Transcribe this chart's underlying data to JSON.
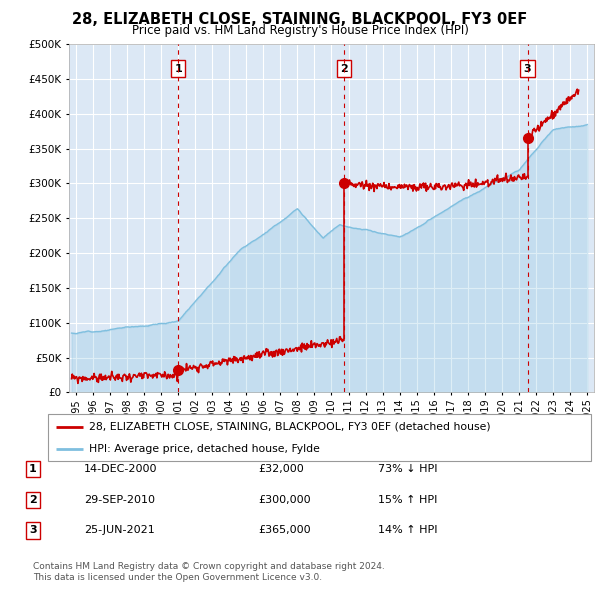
{
  "title": "28, ELIZABETH CLOSE, STAINING, BLACKPOOL, FY3 0EF",
  "subtitle": "Price paid vs. HM Land Registry's House Price Index (HPI)",
  "legend_line1": "28, ELIZABETH CLOSE, STAINING, BLACKPOOL, FY3 0EF (detached house)",
  "legend_line2": "HPI: Average price, detached house, Fylde",
  "footer1": "Contains HM Land Registry data © Crown copyright and database right 2024.",
  "footer2": "This data is licensed under the Open Government Licence v3.0.",
  "table_rows": [
    {
      "num": "1",
      "date": "14-DEC-2000",
      "price": "£32,000",
      "change": "73% ↓ HPI"
    },
    {
      "num": "2",
      "date": "29-SEP-2010",
      "price": "£300,000",
      "change": "15% ↑ HPI"
    },
    {
      "num": "3",
      "date": "25-JUN-2021",
      "price": "£365,000",
      "change": "14% ↑ HPI"
    }
  ],
  "sale_dates": [
    2001.0,
    2010.75,
    2021.5
  ],
  "sale_prices": [
    32000,
    300000,
    365000
  ],
  "sale_labels": [
    "1",
    "2",
    "3"
  ],
  "hpi_color": "#7fbfdf",
  "sale_color": "#cc0000",
  "vline_color": "#cc0000",
  "bg_color": "#dce8f5",
  "grid_color": "#ffffff",
  "ylim": [
    0,
    500000
  ],
  "xlim_start": 1994.6,
  "xlim_end": 2025.4
}
